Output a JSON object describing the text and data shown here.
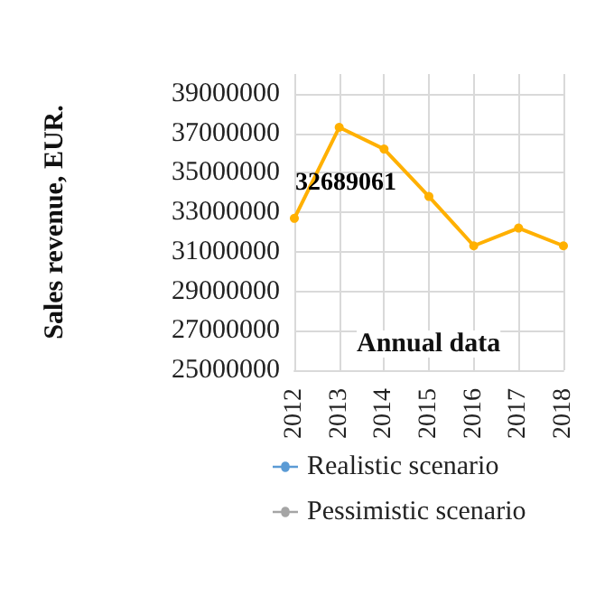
{
  "chart_data": {
    "type": "line",
    "xlabel": "Annual data",
    "ylabel": "Sales revenue, EUR.",
    "categories": [
      "2012",
      "2013",
      "2014",
      "2015",
      "2016",
      "2017",
      "2018"
    ],
    "series": [
      {
        "color": "#ffb000",
        "values": [
          32689061,
          37300000,
          36200000,
          33800000,
          31300000,
          32200000,
          31300000
        ],
        "value_labels": [
          "32689061",
          null,
          null,
          null,
          null,
          null,
          null
        ]
      },
      {
        "name": "Realistic scenario",
        "color": "#5b9bd5",
        "values": [
          null,
          null,
          null,
          null,
          null,
          null,
          null
        ]
      },
      {
        "name": "Pessimistic scenario",
        "color": "#a5a5a5",
        "values": [
          null,
          null,
          null,
          null,
          null,
          null,
          null
        ]
      }
    ],
    "ylim": [
      25000000,
      40000000
    ],
    "yticks": [
      25000000,
      27000000,
      29000000,
      31000000,
      33000000,
      35000000,
      37000000,
      39000000
    ],
    "grid": true,
    "legend": "bottom left",
    "marker": "circle",
    "line_style": "solid"
  }
}
